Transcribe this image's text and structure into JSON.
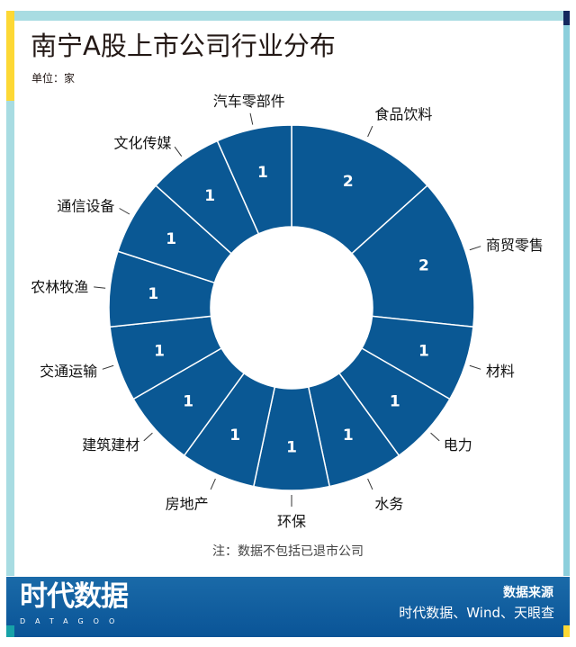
{
  "header": {
    "title": "南宁A股上市公司行业分布",
    "unit": "单位：家"
  },
  "note": "注：数据不包括已退市公司",
  "footer": {
    "logo": "时代数据",
    "logo_sub": "DATAGOO",
    "source_title": "数据来源",
    "source": "时代数据、Wind、天眼查"
  },
  "colors": {
    "slice": "#0a5894",
    "accent_blue": "#a8dce2",
    "accent_yellow": "#fdd835"
  },
  "chart_data": {
    "type": "pie",
    "donut": true,
    "title": "南宁A股上市公司行业分布",
    "unit": "家",
    "categories": [
      "食品饮料",
      "商贸零售",
      "材料",
      "电力",
      "水务",
      "环保",
      "房地产",
      "建筑建材",
      "交通运输",
      "农林牧渔",
      "通信设备",
      "文化传媒",
      "汽车零部件"
    ],
    "values": [
      2,
      2,
      1,
      1,
      1,
      1,
      1,
      1,
      1,
      1,
      1,
      1,
      1
    ]
  }
}
